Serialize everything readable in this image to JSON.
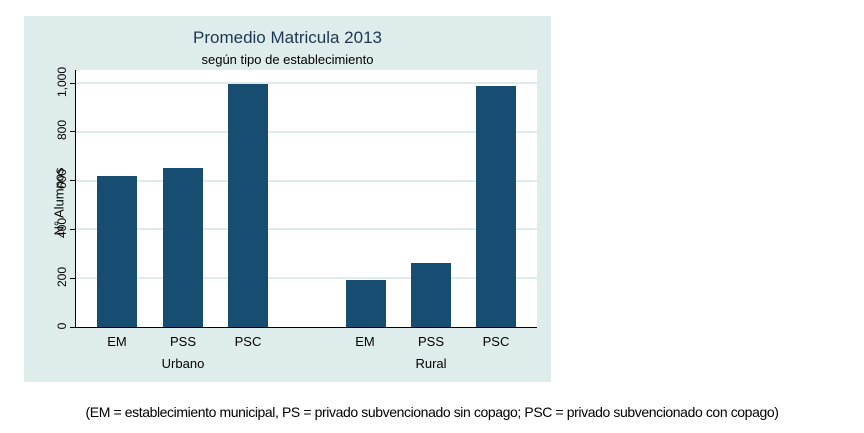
{
  "chart_data": {
    "type": "bar",
    "title": "Promedio Matricula 2013",
    "subtitle": "según tipo de establecimiento",
    "xlabel": "",
    "ylabel": "N° Alumnos",
    "ylim": [
      0,
      1000
    ],
    "yticks": [
      "0",
      "200",
      "400",
      "600",
      "800",
      "1,000"
    ],
    "grid": true,
    "groups": [
      "Urbano",
      "Rural"
    ],
    "categories": [
      "EM",
      "PSS",
      "PSC"
    ],
    "series": [
      {
        "name": "Urbano",
        "values": [
          619,
          652,
          996
        ]
      },
      {
        "name": "Rural",
        "values": [
          193,
          264,
          989
        ]
      }
    ],
    "bar_color": "#174d70",
    "background_color": "#deecec"
  },
  "caption": "(EM = establecimiento municipal, PS = privado subvencionado sin copago; PSC = privado subvencionado con copago)"
}
